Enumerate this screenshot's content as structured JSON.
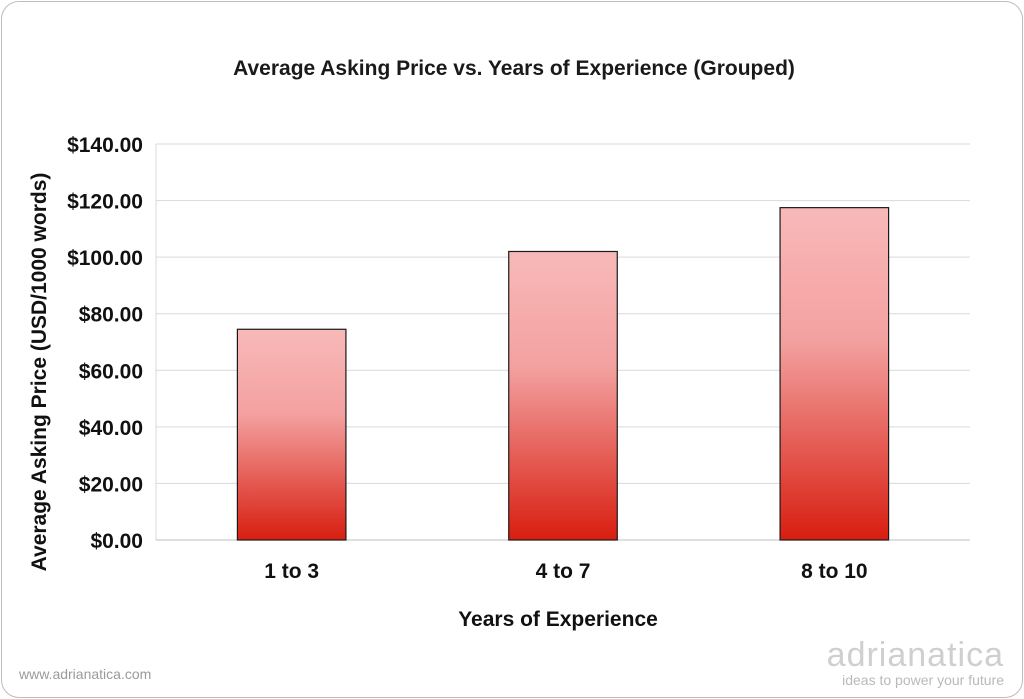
{
  "chart_data": {
    "type": "bar",
    "title": "Average Asking Price vs. Years of Experience (Grouped)",
    "xlabel": "Years of Experience",
    "ylabel": "Average Asking Price (USD/1000 words)",
    "categories": [
      "1 to 3",
      "4 to 7",
      "8 to 10"
    ],
    "values": [
      74.5,
      102,
      117.5
    ],
    "ylim": [
      0,
      140
    ],
    "yticks": [
      0,
      20,
      40,
      60,
      80,
      100,
      120,
      140
    ],
    "ytick_labels": [
      "$0.00",
      "$20.00",
      "$40.00",
      "$60.00",
      "$80.00",
      "$100.00",
      "$120.00",
      "$140.00"
    ],
    "grid": true,
    "legend": "none",
    "colors": {
      "bar_top": "#f9b9b9",
      "bar_mid": "#f3a1a0",
      "bar_bottom": "#d81e10",
      "bar_border": "#1a1a1a",
      "gridline": "#d9d9d9"
    }
  },
  "footer": {
    "url": "www.adrianatica.com"
  },
  "brand": {
    "name": "adrianatica",
    "tagline": "ideas to power your future"
  }
}
